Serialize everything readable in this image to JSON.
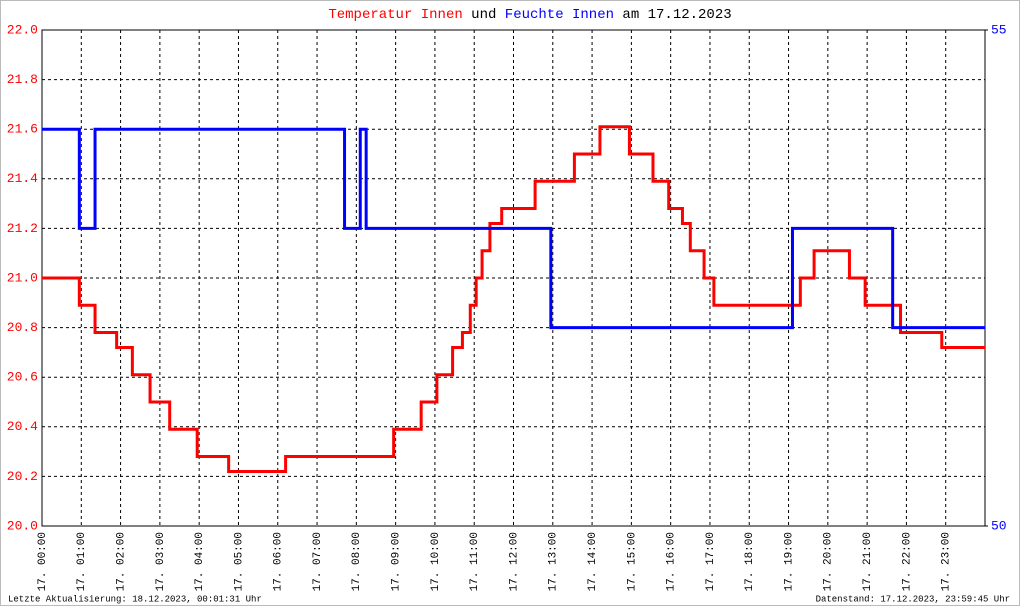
{
  "chart_data": {
    "type": "line",
    "title": [
      "Temperatur Innen",
      "und",
      "Feuchte Innen",
      "am 17.12.2023"
    ],
    "footer_left": "Letzte Aktualisierung: 18.12.2023, 00:01:31 Uhr",
    "footer_right": "Datenstand: 17.12.2023, 23:59:45 Uhr",
    "xlim": [
      0,
      24
    ],
    "xticks": [
      {
        "value": 0,
        "label": "17. 00:00"
      },
      {
        "value": 1,
        "label": "17. 01:00"
      },
      {
        "value": 2,
        "label": "17. 02:00"
      },
      {
        "value": 3,
        "label": "17. 03:00"
      },
      {
        "value": 4,
        "label": "17. 04:00"
      },
      {
        "value": 5,
        "label": "17. 05:00"
      },
      {
        "value": 6,
        "label": "17. 06:00"
      },
      {
        "value": 7,
        "label": "17. 07:00"
      },
      {
        "value": 8,
        "label": "17. 08:00"
      },
      {
        "value": 9,
        "label": "17. 09:00"
      },
      {
        "value": 10,
        "label": "17. 10:00"
      },
      {
        "value": 11,
        "label": "17. 11:00"
      },
      {
        "value": 12,
        "label": "17. 12:00"
      },
      {
        "value": 13,
        "label": "17. 13:00"
      },
      {
        "value": 14,
        "label": "17. 14:00"
      },
      {
        "value": 15,
        "label": "17. 15:00"
      },
      {
        "value": 16,
        "label": "17. 16:00"
      },
      {
        "value": 17,
        "label": "17. 17:00"
      },
      {
        "value": 18,
        "label": "17. 18:00"
      },
      {
        "value": 19,
        "label": "17. 19:00"
      },
      {
        "value": 20,
        "label": "17. 20:00"
      },
      {
        "value": 21,
        "label": "17. 21:00"
      },
      {
        "value": 22,
        "label": "17. 22:00"
      },
      {
        "value": 23,
        "label": "17. 23:00"
      }
    ],
    "ylim": [
      20,
      22
    ],
    "yticks": [
      {
        "value": 20,
        "label": "20.0"
      },
      20.2,
      20.4,
      20.6,
      20.8,
      {
        "value": 21,
        "label": "21.0"
      },
      21.2,
      21.4,
      21.6,
      21.8,
      {
        "value": 22,
        "label": "22.0"
      }
    ],
    "y2lim": [
      50,
      55
    ],
    "y2ticks": [
      50,
      55
    ],
    "grid": true,
    "series": [
      {
        "name": "Temperatur Innen",
        "color": "#ff0000",
        "x": [
          0,
          0.95,
          0.95,
          1.35,
          1.35,
          1.9,
          1.9,
          2.3,
          2.3,
          2.75,
          2.75,
          3.25,
          3.25,
          3.95,
          3.95,
          4.75,
          4.75,
          6.2,
          6.2,
          8.95,
          8.95,
          9.65,
          9.65,
          10.05,
          10.05,
          10.45,
          10.45,
          10.7,
          10.7,
          10.9,
          10.9,
          11.05,
          11.05,
          11.2,
          11.2,
          11.4,
          11.4,
          11.7,
          11.7,
          12.55,
          12.55,
          13.55,
          13.55,
          14.2,
          14.2,
          14.95,
          14.95,
          15.55,
          15.55,
          15.95,
          15.95,
          16.3,
          16.3,
          16.5,
          16.5,
          16.85,
          16.85,
          17.1,
          17.1,
          19.3,
          19.3,
          19.65,
          19.65,
          20.55,
          20.55,
          20.95,
          20.95,
          21.85,
          21.85,
          22.9,
          22.9,
          24
        ],
        "values": [
          21.0,
          21.0,
          20.89,
          20.89,
          20.78,
          20.78,
          20.72,
          20.72,
          20.61,
          20.61,
          20.5,
          20.5,
          20.39,
          20.39,
          20.28,
          20.28,
          20.22,
          20.22,
          20.28,
          20.28,
          20.39,
          20.39,
          20.5,
          20.5,
          20.61,
          20.61,
          20.72,
          20.72,
          20.78,
          20.78,
          20.89,
          20.89,
          21.0,
          21.0,
          21.11,
          21.11,
          21.22,
          21.22,
          21.28,
          21.28,
          21.39,
          21.39,
          21.5,
          21.5,
          21.61,
          21.61,
          21.5,
          21.5,
          21.39,
          21.39,
          21.28,
          21.28,
          21.22,
          21.22,
          21.11,
          21.11,
          21.0,
          21.0,
          20.89,
          20.89,
          21.0,
          21.0,
          21.11,
          21.11,
          21.0,
          21.0,
          20.89,
          20.89,
          20.78,
          20.78,
          20.72,
          20.72
        ]
      },
      {
        "name": "Feuchte Innen",
        "color": "#0000ff",
        "axis": "y2",
        "x": [
          0,
          0.95,
          0.95,
          1.35,
          1.35,
          7.7,
          7.7,
          8.1,
          8.1,
          8.25,
          8.25,
          12.95,
          12.95,
          19.1,
          19.1,
          21.65,
          21.65,
          24
        ],
        "values": [
          54,
          54,
          53,
          53,
          54,
          54,
          53,
          53,
          54,
          54,
          53,
          53,
          52,
          52,
          53,
          53,
          52,
          52
        ]
      }
    ]
  }
}
